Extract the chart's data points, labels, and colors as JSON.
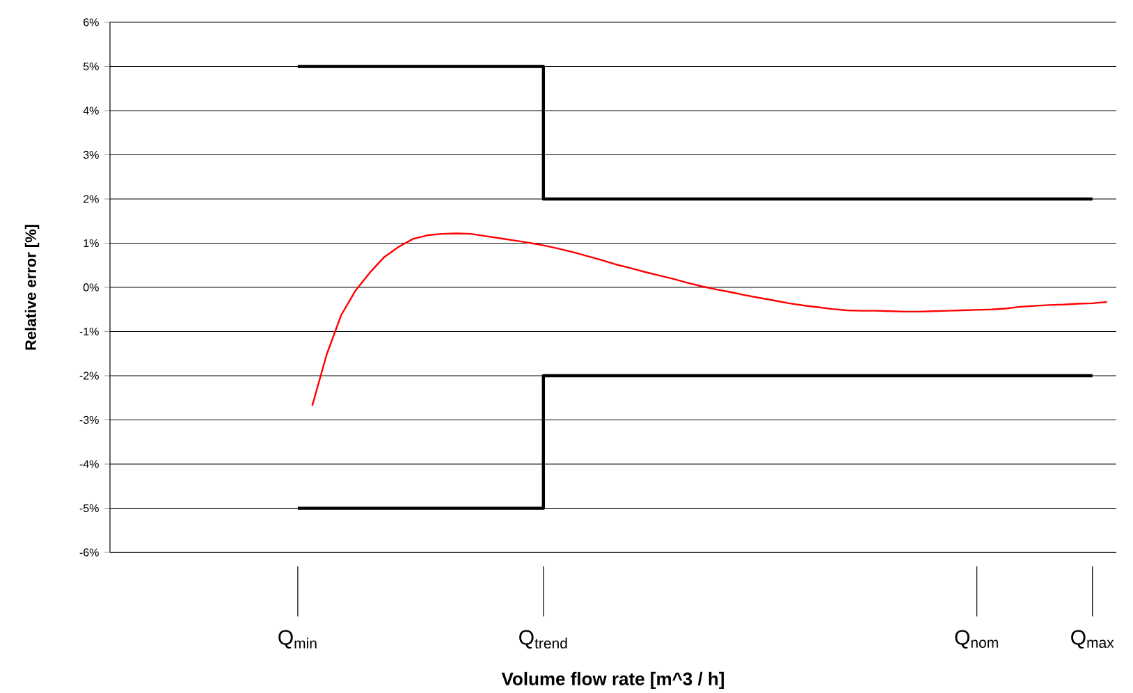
{
  "chart_data": {
    "type": "line",
    "xlabel": "Volume flow rate [m^3 / h]",
    "ylabel": "Relative error [%]",
    "categories": [
      null,
      null,
      null,
      null,
      null,
      null,
      null,
      null,
      null,
      null,
      null,
      null,
      null,
      "Q$_{min}$",
      null,
      null,
      null,
      null,
      null,
      null,
      null,
      null,
      null,
      null,
      null,
      null,
      null,
      null,
      null,
      null,
      "Q$_{trend}$",
      null,
      null,
      null,
      null,
      null,
      null,
      null,
      null,
      null,
      null,
      null,
      null,
      null,
      null,
      null,
      null,
      null,
      null,
      null,
      null,
      null,
      null,
      null,
      null,
      null,
      null,
      null,
      null,
      null,
      "Q$_{nom}$",
      null,
      null,
      null,
      null,
      null,
      null,
      null,
      "Q$_{max}$",
      null
    ],
    "ylim": [
      -6,
      6
    ],
    "yticks": [
      {
        "value": -6,
        "label": "-6%"
      },
      {
        "value": -5,
        "label": "-5%"
      },
      {
        "value": -4,
        "label": "-4%"
      },
      {
        "value": -3,
        "label": "-3%"
      },
      {
        "value": -2,
        "label": "-2%"
      },
      {
        "value": -1,
        "label": "-1%"
      },
      {
        "value": 0,
        "label": "0%"
      },
      {
        "value": 1,
        "label": "1%"
      },
      {
        "value": 2,
        "label": "2%"
      },
      {
        "value": 3,
        "label": "3%"
      },
      {
        "value": 4,
        "label": "4%"
      },
      {
        "value": 5,
        "label": "5%"
      },
      {
        "value": 6,
        "label": "6%"
      }
    ],
    "grid": "y",
    "series": [
      {
        "type": "step",
        "color": "#000000",
        "values": [
          null,
          null,
          null,
          null,
          null,
          null,
          null,
          null,
          null,
          null,
          null,
          null,
          null,
          5,
          5,
          5,
          5,
          5,
          5,
          5,
          5,
          5,
          5,
          5,
          5,
          5,
          5,
          5,
          5,
          5,
          2,
          2,
          2,
          2,
          2,
          2,
          2,
          2,
          2,
          2,
          2,
          2,
          2,
          2,
          2,
          2,
          2,
          2,
          2,
          2,
          2,
          2,
          2,
          2,
          2,
          2,
          2,
          2,
          2,
          2,
          2,
          2,
          2,
          2,
          2,
          2,
          2,
          2,
          2,
          null
        ]
      },
      {
        "type": "step",
        "color": "#000000",
        "values": [
          null,
          null,
          null,
          null,
          null,
          null,
          null,
          null,
          null,
          null,
          null,
          null,
          null,
          -5,
          -5,
          -5,
          -5,
          -5,
          -5,
          -5,
          -5,
          -5,
          -5,
          -5,
          -5,
          -5,
          -5,
          -5,
          -5,
          -5,
          -2,
          -2,
          -2,
          -2,
          -2,
          -2,
          -2,
          -2,
          -2,
          -2,
          -2,
          -2,
          -2,
          -2,
          -2,
          -2,
          -2,
          -2,
          -2,
          -2,
          -2,
          -2,
          -2,
          -2,
          -2,
          -2,
          -2,
          -2,
          -2,
          -2,
          -2,
          -2,
          -2,
          -2,
          -2,
          -2,
          -2,
          -2,
          -2,
          null
        ]
      },
      {
        "color": "#ff0000",
        "values": [
          null,
          null,
          null,
          null,
          null,
          null,
          null,
          null,
          null,
          null,
          null,
          null,
          null,
          null,
          -2.68,
          -1.52,
          -0.63,
          -0.07,
          0.34,
          0.69,
          0.92,
          1.1,
          1.18,
          1.21,
          1.22,
          1.21,
          1.16,
          1.11,
          1.06,
          1.01,
          0.95,
          0.88,
          0.8,
          0.71,
          0.62,
          0.52,
          0.44,
          0.35,
          0.27,
          0.19,
          0.1,
          0.02,
          -0.05,
          -0.11,
          -0.18,
          -0.24,
          -0.3,
          -0.36,
          -0.41,
          -0.45,
          -0.49,
          -0.52,
          -0.53,
          -0.53,
          -0.54,
          -0.55,
          -0.55,
          -0.54,
          -0.53,
          -0.52,
          -0.51,
          -0.5,
          -0.48,
          -0.44,
          -0.42,
          -0.4,
          -0.39,
          -0.37,
          -0.36,
          -0.33
        ]
      }
    ]
  }
}
